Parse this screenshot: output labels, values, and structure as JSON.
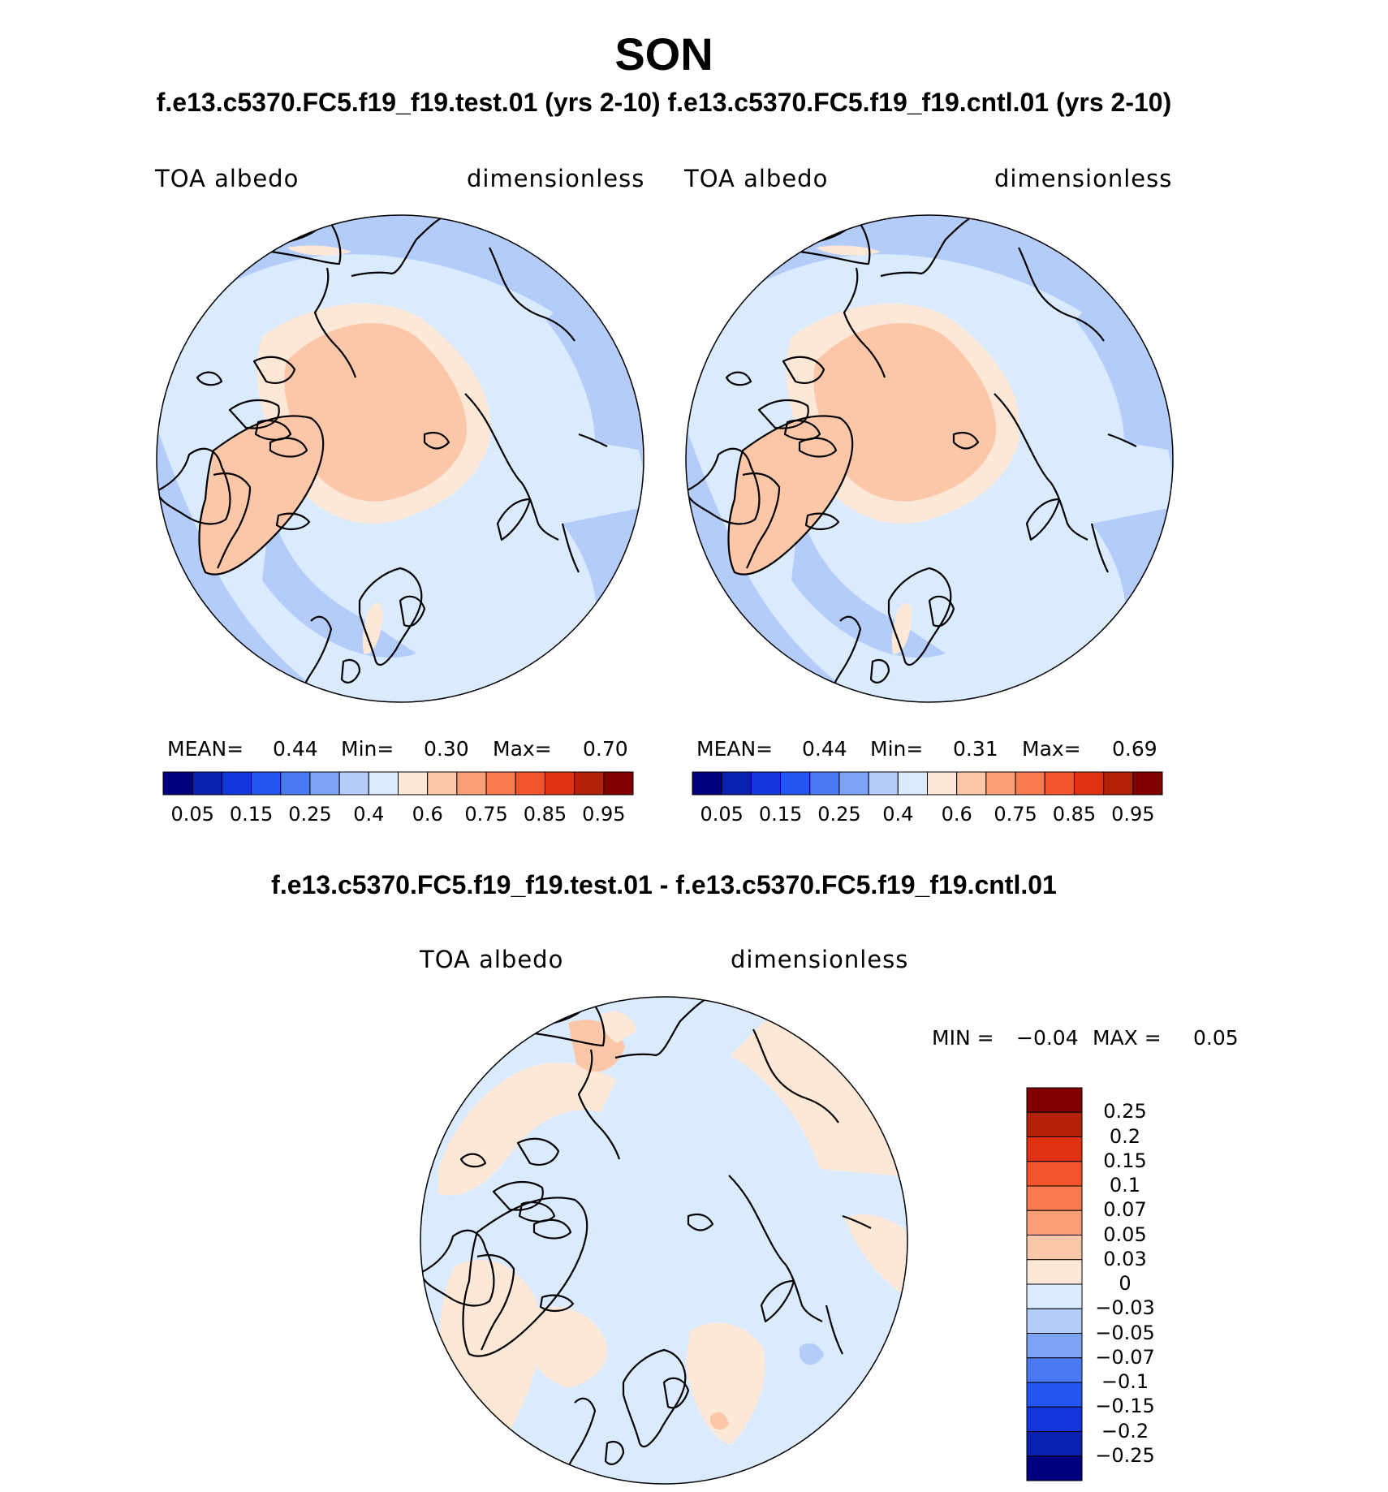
{
  "title": "SON",
  "subtitle": "f.e13.c5370.FC5.f19_f19.test.01 (yrs 2-10) f.e13.c5370.FC5.f19_f19.cntl.01 (yrs 2-10)",
  "panels": [
    {
      "variable": "TOA albedo",
      "units": "dimensionless",
      "stats": {
        "mean_label": "MEAN=",
        "mean": "0.44",
        "min_label": "Min=",
        "min": "0.30",
        "max_label": "Max=",
        "max": "0.70"
      }
    },
    {
      "variable": "TOA albedo",
      "units": "dimensionless",
      "stats": {
        "mean_label": "MEAN=",
        "mean": "0.44",
        "min_label": "Min=",
        "min": "0.31",
        "max_label": "Max=",
        "max": "0.69"
      }
    }
  ],
  "colorbar_horizontal": {
    "colors": [
      "#00007f",
      "#0a20b0",
      "#1235dc",
      "#2356f0",
      "#4a7af2",
      "#7da3f4",
      "#b3ccfa",
      "#daebff",
      "#fde7d6",
      "#fcc7a8",
      "#fa9e78",
      "#f87a4f",
      "#f5542a",
      "#e03212",
      "#b32208",
      "#820000"
    ],
    "tick_labels": [
      "0.05",
      "0.15",
      "0.25",
      "0.4",
      "0.6",
      "0.75",
      "0.85",
      "0.95"
    ]
  },
  "difference": {
    "title": "f.e13.c5370.FC5.f19_f19.test.01 - f.e13.c5370.FC5.f19_f19.cntl.01",
    "variable": "TOA albedo",
    "units": "dimensionless",
    "min_label": "MIN =",
    "min": "−0.04",
    "max_label": "MAX =",
    "max": "0.05",
    "colorbar": {
      "colors": [
        "#820000",
        "#b32208",
        "#e03212",
        "#f5542a",
        "#f87a4f",
        "#fa9e78",
        "#fcc7a8",
        "#fde7d6",
        "#daebff",
        "#b3ccfa",
        "#7da3f4",
        "#4a7af2",
        "#2356f0",
        "#1235dc",
        "#0a20b0",
        "#00007f"
      ],
      "labels": [
        "0.25",
        "0.2",
        "0.15",
        "0.1",
        "0.07",
        "0.05",
        "0.03",
        "0",
        "−0.03",
        "−0.05",
        "−0.07",
        "−0.1",
        "−0.15",
        "−0.2",
        "−0.25"
      ]
    }
  }
}
